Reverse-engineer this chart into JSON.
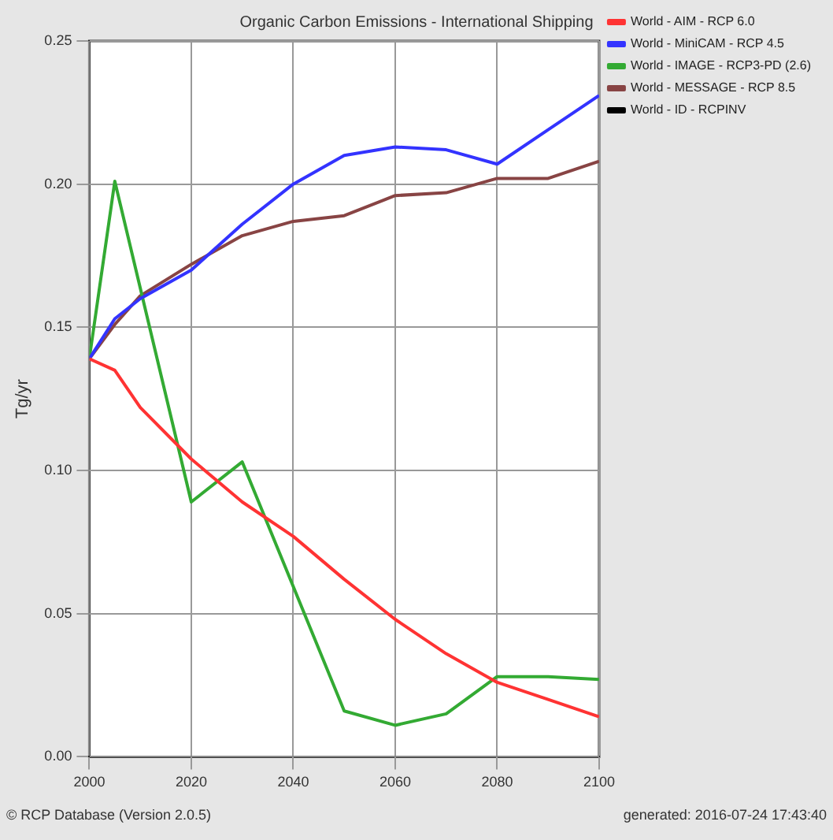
{
  "chart_data": {
    "type": "line",
    "title": "Organic Carbon Emissions - International Shipping",
    "ylabel": "Tg/yr",
    "xlim": [
      2000,
      2100
    ],
    "xticks": [
      2000,
      2020,
      2040,
      2060,
      2080,
      2100
    ],
    "ylim": [
      0,
      0.25
    ],
    "yticks": [
      {
        "value": 0,
        "label": "0.00"
      },
      {
        "value": 0.05,
        "label": "0.05"
      },
      {
        "value": 0.1,
        "label": "0.10"
      },
      {
        "value": 0.15,
        "label": "0.15"
      },
      {
        "value": 0.2,
        "label": "0.20"
      },
      {
        "value": 0.25,
        "label": "0.25"
      }
    ],
    "grid": true,
    "legend": "top right",
    "annotations": [
      "© RCP Database (Version 2.0.5)",
      "generated: 2016-07-24 17:43:40"
    ],
    "series": [
      {
        "name": "World - AIM - RCP 6.0",
        "color": "#ff3333",
        "x": [
          2000,
          2005,
          2010,
          2020,
          2030,
          2040,
          2050,
          2060,
          2070,
          2080,
          2090,
          2100
        ],
        "values": [
          0.139,
          0.135,
          0.122,
          0.104,
          0.089,
          0.077,
          0.062,
          0.048,
          0.036,
          0.026,
          0.02,
          0.014
        ]
      },
      {
        "name": "World - MiniCAM - RCP 4.5",
        "color": "#3333ff",
        "x": [
          2000,
          2005,
          2010,
          2020,
          2030,
          2040,
          2050,
          2060,
          2070,
          2080,
          2090,
          2100
        ],
        "values": [
          0.139,
          0.153,
          0.16,
          0.17,
          0.186,
          0.2,
          0.21,
          0.213,
          0.212,
          0.207,
          0.219,
          0.231
        ]
      },
      {
        "name": "World - IMAGE - RCP3-PD (2.6)",
        "color": "#33aa33",
        "x": [
          2000,
          2005,
          2020,
          2030,
          2050,
          2060,
          2070,
          2080,
          2090,
          2100
        ],
        "values": [
          0.139,
          0.201,
          0.089,
          0.103,
          0.016,
          0.011,
          0.015,
          0.028,
          0.028,
          0.027
        ]
      },
      {
        "name": "World - MESSAGE - RCP 8.5",
        "color": "#884444",
        "x": [
          2000,
          2005,
          2010,
          2020,
          2030,
          2040,
          2050,
          2060,
          2070,
          2080,
          2090,
          2100
        ],
        "values": [
          0.139,
          0.151,
          0.161,
          0.172,
          0.182,
          0.187,
          0.189,
          0.196,
          0.197,
          0.202,
          0.202,
          0.208
        ]
      },
      {
        "name": "World - ID - RCPINV",
        "color": "#000000"
      }
    ]
  }
}
